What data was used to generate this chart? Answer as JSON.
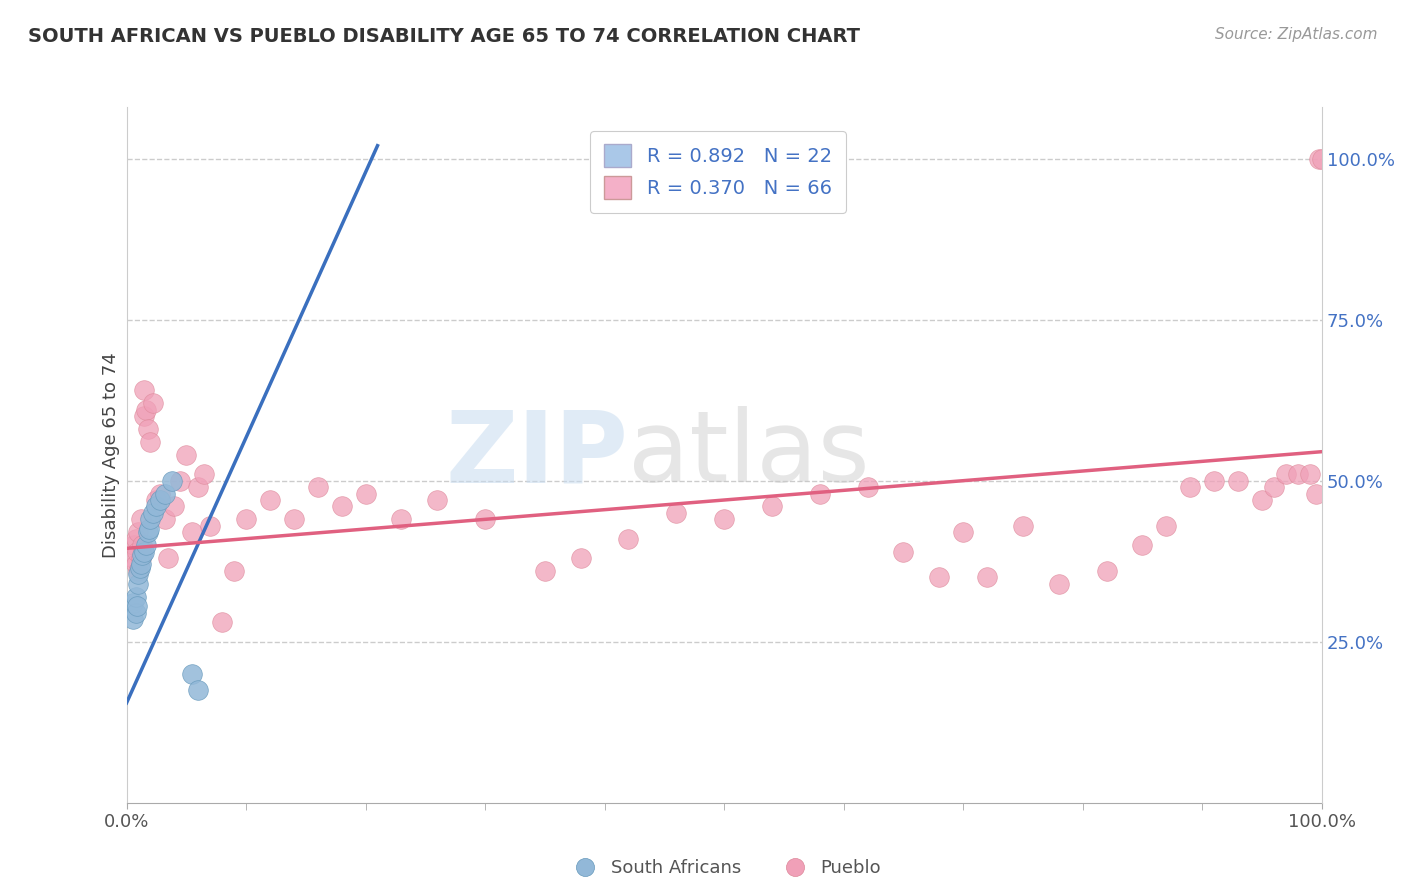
{
  "title": "SOUTH AFRICAN VS PUEBLO DISABILITY AGE 65 TO 74 CORRELATION CHART",
  "source": "Source: ZipAtlas.com",
  "ylabel": "Disability Age 65 to 74",
  "south_african_color": "#92b8d8",
  "south_african_edge": "#6699bb",
  "pueblo_color": "#f0a0b8",
  "pueblo_edge": "#dd8899",
  "south_african_line_color": "#3a6fbe",
  "pueblo_line_color": "#e06080",
  "background_color": "#ffffff",
  "legend_sa_color": "#aac8e8",
  "legend_pu_color": "#f4b0c8",
  "sa_label": "R = 0.892   N = 22",
  "pu_label": "R = 0.370   N = 66",
  "bottom_sa_label": "South Africans",
  "bottom_pu_label": "Pueblo",
  "xlim": [
    0.0,
    1.0
  ],
  "ylim": [
    0.0,
    1.08
  ],
  "sa_line_x0": 0.0,
  "sa_line_y0": 0.155,
  "sa_line_x1": 0.21,
  "sa_line_y1": 1.02,
  "pu_line_x0": 0.0,
  "pu_line_y0": 0.395,
  "pu_line_x1": 1.0,
  "pu_line_y1": 0.545,
  "sa_x": [
    0.005,
    0.005,
    0.008,
    0.008,
    0.009,
    0.01,
    0.01,
    0.011,
    0.012,
    0.013,
    0.015,
    0.016,
    0.018,
    0.019,
    0.02,
    0.022,
    0.025,
    0.028,
    0.032,
    0.038,
    0.055,
    0.06
  ],
  "sa_y": [
    0.285,
    0.31,
    0.295,
    0.32,
    0.305,
    0.34,
    0.355,
    0.365,
    0.37,
    0.385,
    0.39,
    0.4,
    0.42,
    0.425,
    0.44,
    0.45,
    0.46,
    0.47,
    0.48,
    0.5,
    0.2,
    0.175
  ],
  "pu_x": [
    0.005,
    0.006,
    0.008,
    0.008,
    0.009,
    0.01,
    0.01,
    0.012,
    0.012,
    0.013,
    0.015,
    0.015,
    0.016,
    0.018,
    0.02,
    0.022,
    0.025,
    0.028,
    0.032,
    0.035,
    0.04,
    0.045,
    0.05,
    0.055,
    0.06,
    0.065,
    0.07,
    0.08,
    0.09,
    0.1,
    0.12,
    0.14,
    0.16,
    0.18,
    0.2,
    0.23,
    0.26,
    0.3,
    0.35,
    0.38,
    0.42,
    0.46,
    0.5,
    0.54,
    0.58,
    0.62,
    0.65,
    0.68,
    0.7,
    0.72,
    0.75,
    0.78,
    0.82,
    0.85,
    0.87,
    0.89,
    0.91,
    0.93,
    0.95,
    0.96,
    0.97,
    0.98,
    0.99,
    0.995,
    0.998,
    1.0
  ],
  "pu_y": [
    0.38,
    0.4,
    0.37,
    0.41,
    0.39,
    0.36,
    0.42,
    0.38,
    0.44,
    0.4,
    0.6,
    0.64,
    0.61,
    0.58,
    0.56,
    0.62,
    0.47,
    0.48,
    0.44,
    0.38,
    0.46,
    0.5,
    0.54,
    0.42,
    0.49,
    0.51,
    0.43,
    0.28,
    0.36,
    0.44,
    0.47,
    0.44,
    0.49,
    0.46,
    0.48,
    0.44,
    0.47,
    0.44,
    0.36,
    0.38,
    0.41,
    0.45,
    0.44,
    0.46,
    0.48,
    0.49,
    0.39,
    0.35,
    0.42,
    0.35,
    0.43,
    0.34,
    0.36,
    0.4,
    0.43,
    0.49,
    0.5,
    0.5,
    0.47,
    0.49,
    0.51,
    0.51,
    0.51,
    0.48,
    1.0,
    1.0
  ]
}
